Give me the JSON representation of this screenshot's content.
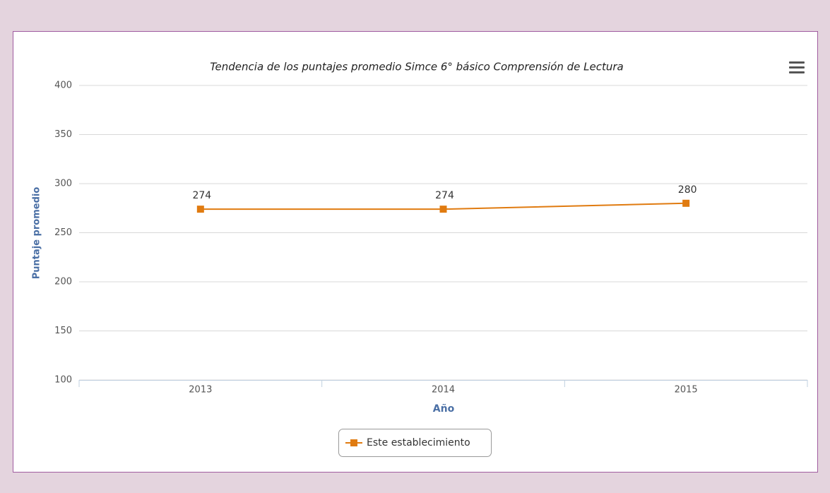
{
  "chart_data": {
    "type": "line",
    "title": "Tendencia de los puntajes promedio Simce 6° básico Comprensión de Lectura",
    "x_label": "Año",
    "y_label": "Puntaje promedio",
    "categories": [
      "2013",
      "2014",
      "2015"
    ],
    "series": [
      {
        "name": "Este establecimiento",
        "color": "#e07b10",
        "values": [
          274,
          274,
          280
        ]
      }
    ],
    "ylim": [
      100,
      400
    ],
    "yticks": [
      100,
      150,
      200,
      250,
      300,
      350,
      400
    ],
    "grid": true,
    "legend": "bottom"
  }
}
